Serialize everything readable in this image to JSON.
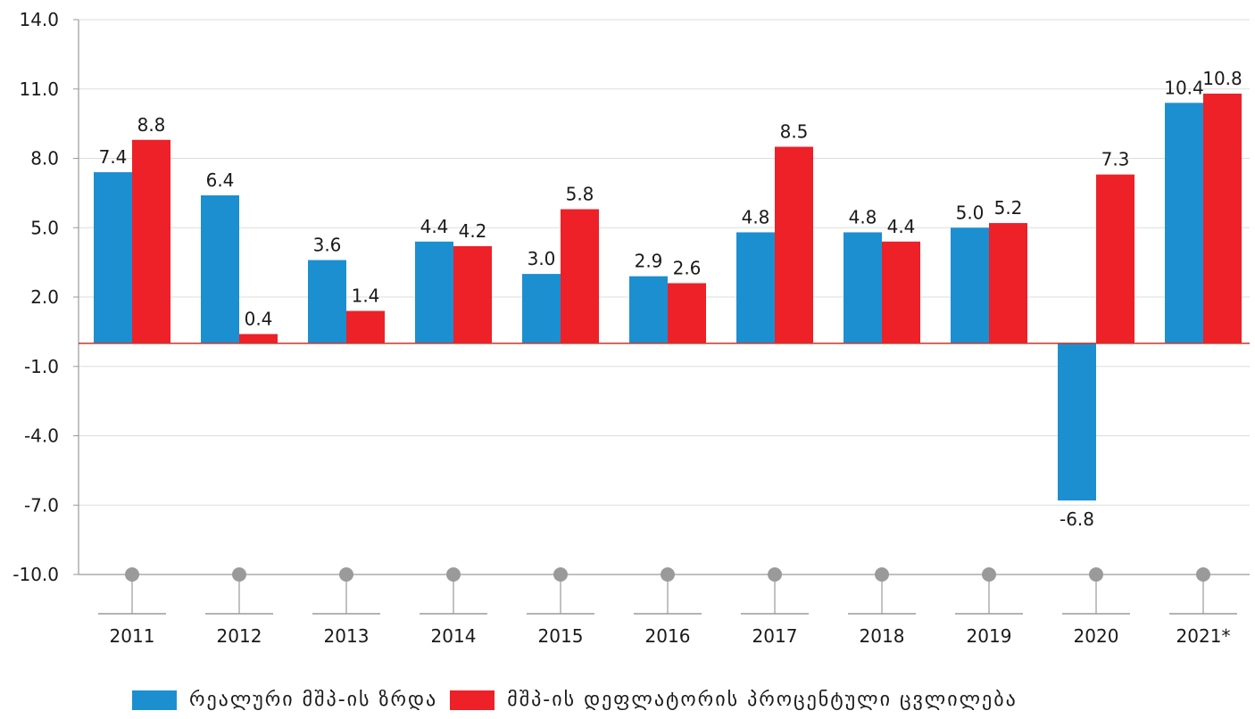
{
  "chart_data": {
    "type": "bar",
    "categories": [
      "2011",
      "2012",
      "2013",
      "2014",
      "2015",
      "2016",
      "2017",
      "2018",
      "2019",
      "2020",
      "2021*"
    ],
    "series": [
      {
        "name": "რეალური მშპ-ის ზრდა",
        "color": "#1c8fd1",
        "values": [
          7.4,
          6.4,
          3.6,
          4.4,
          3.0,
          2.9,
          4.8,
          4.8,
          5.0,
          -6.8,
          10.4
        ]
      },
      {
        "name": "მშპ-ის დეფლატორის პროცენტული ცვლილება",
        "color": "#ee2028",
        "values": [
          8.8,
          0.4,
          1.4,
          4.2,
          5.8,
          2.6,
          8.5,
          4.4,
          5.2,
          7.3,
          10.8
        ]
      }
    ],
    "ylim": [
      -10,
      14
    ],
    "yticks": [
      "14.0",
      "11.0",
      "8.0",
      "5.0",
      "2.0",
      "-1.0",
      "-4.0",
      "-7.0",
      "-10.0"
    ],
    "ytick_values": [
      14,
      11,
      8,
      5,
      2,
      -1,
      -4,
      -7,
      -10
    ],
    "grid": true,
    "zero_line_color": "#c0392b",
    "legend_position": "bottom",
    "title": "",
    "xlabel": "",
    "ylabel": ""
  }
}
